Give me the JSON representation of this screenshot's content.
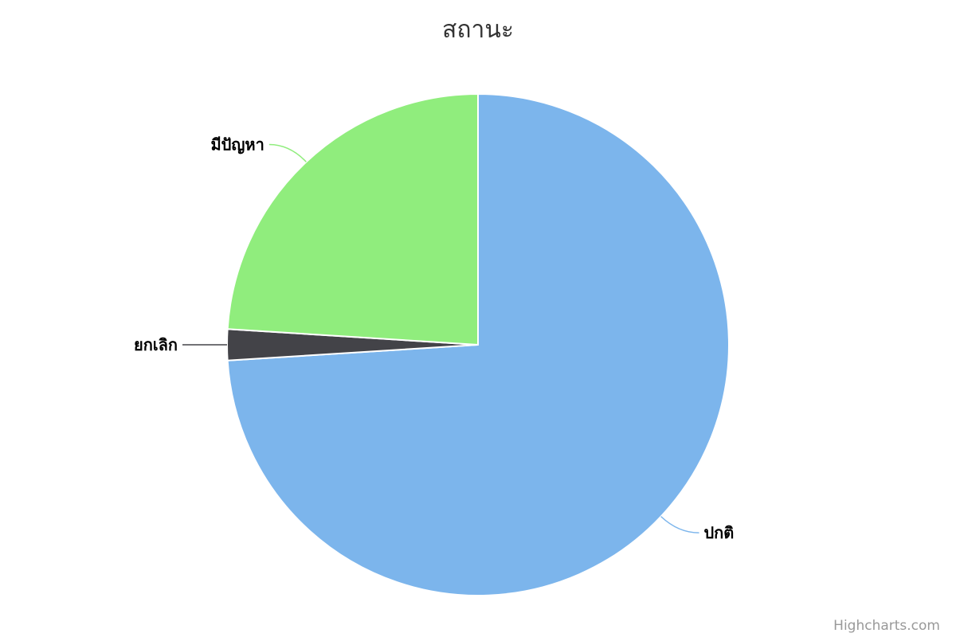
{
  "chart_data": {
    "type": "pie",
    "title": "สถานะ",
    "slices": [
      {
        "name": "ปกติ",
        "value": 74,
        "color": "#7cb5ec"
      },
      {
        "name": "ยกเลิก",
        "value": 2,
        "color": "#434348"
      },
      {
        "name": "มีปัญหา",
        "value": 24,
        "color": "#90ed7d"
      }
    ],
    "legend": "none",
    "data_labels": "outside-with-connectors"
  },
  "credits": {
    "text": "Highcharts.com"
  }
}
